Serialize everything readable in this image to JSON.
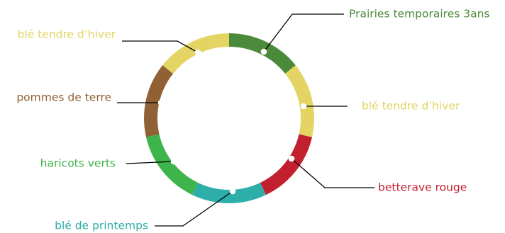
{
  "chart_data": {
    "type": "pie",
    "variant": "donut",
    "title": "",
    "legend": "none",
    "categories": [
      "Prairies temporaires 3ans",
      "blé tendre d’hiver",
      "betterave rouge",
      "blé de printemps",
      "haricots verts",
      "pommes de terre",
      "blé tendre d’hiver"
    ],
    "values": [
      1,
      1,
      1,
      1,
      1,
      1,
      1
    ],
    "colors": [
      "#4b8a3a",
      "#e3d463",
      "#c21f2f",
      "#2eaea8",
      "#3db54a",
      "#8f6135",
      "#e3d463"
    ]
  }
}
